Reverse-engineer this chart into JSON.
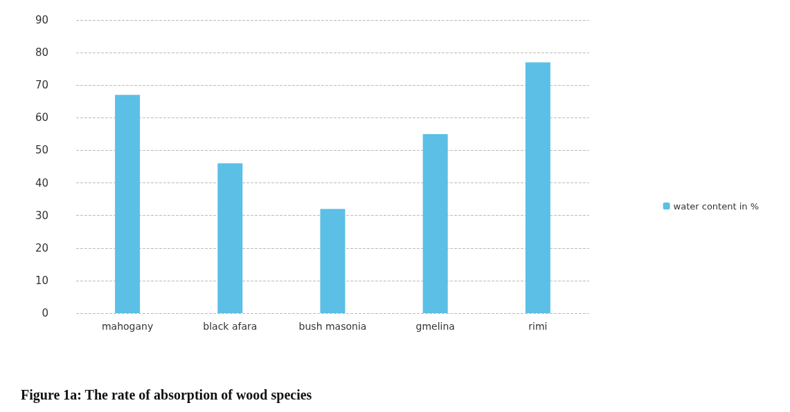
{
  "chart_data": {
    "type": "bar",
    "title": "Figure 1a: The rate of absorption of wood species",
    "categories": [
      "mahogany",
      "black afara",
      "bush masonia",
      "gmelina",
      "rimi"
    ],
    "series": [
      {
        "name": "water content in %",
        "color": "#5bbfe6",
        "values": [
          67,
          46,
          32,
          55,
          77
        ]
      }
    ],
    "ylim": [
      0,
      90
    ],
    "yticks": [
      0,
      10,
      20,
      30,
      40,
      50,
      60,
      70,
      80,
      90
    ],
    "grid": "y",
    "legend": "right"
  }
}
